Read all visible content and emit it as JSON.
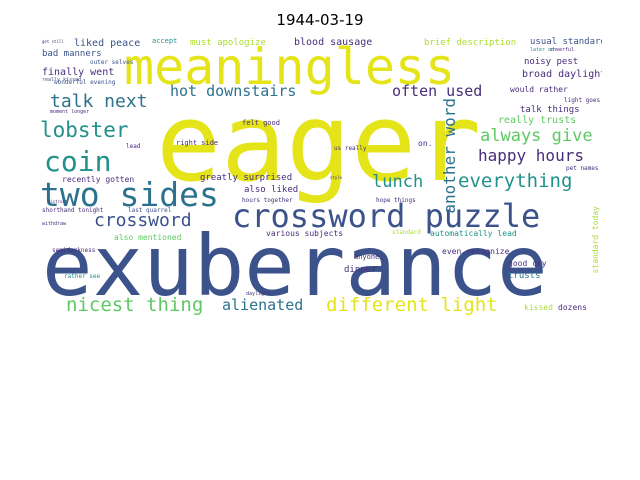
{
  "title": "1944-03-19",
  "palette": {
    "yellow": "#e5e419",
    "navy": "#3b528b",
    "purple": "#472d7b",
    "teal": "#21918c",
    "green": "#5ec962",
    "lightgreen": "#addc30",
    "blue": "#2c728e"
  },
  "words": {
    "w01": "eager",
    "w02": "exuberance",
    "w03": "meaningless",
    "w04": "crossword puzzle",
    "w05": "two sides",
    "w06": "coin",
    "w07": "lobster",
    "w08": "talk next",
    "w09": "hot downstairs",
    "w10": "often used",
    "w11": "always give",
    "w12": "happy hours",
    "w13": "lunch",
    "w14": "everything",
    "w15": "another word",
    "w16": "crossword",
    "w17": "nicest thing",
    "w18": "alienated",
    "w19": "different light",
    "w20": "liked peace",
    "w21": "must apologize",
    "w22": "blood sausage",
    "w23": "brief description",
    "w24": "usual standard",
    "w25": "bad manners",
    "w26": "finally went",
    "w27": "noisy pest",
    "w28": "broad daylight",
    "w29": "really trusts",
    "w30": "talk things",
    "w31": "would rather",
    "w32": "greatly surprised",
    "w33": "also liked",
    "w34": "recently gotten",
    "w35": "various subjects",
    "w36": "automatically lead",
    "w37": "even recognize",
    "w38": "also mentioned",
    "w39": "good cry",
    "w40": "trusts",
    "w41": "dinner",
    "w42": "anyone.",
    "w43": "kissed",
    "w44": "dozens",
    "w45": "standard today",
    "w46": "right side",
    "w47": "felt good",
    "w48": "on.",
    "w49": "us really",
    "w50": "accept",
    "w51": "outer selves",
    "w52": "wonderful evening",
    "w53": "really kissed",
    "w54": "pet names",
    "w55": "last quarrel",
    "w56": "shorthand tonight",
    "w57": "semidarkness",
    "w58": "rather see",
    "w59": "light goes",
    "w60": "hope things",
    "w61": "lead",
    "w62": "moment longer",
    "w63": "hours together",
    "w64": "standard",
    "w65": "later on",
    "w66": "cheerful",
    "w67": "withdraw",
    "w68": "distrust",
    "w69": "daylight",
    "w70": "style",
    "w71": "get still"
  }
}
